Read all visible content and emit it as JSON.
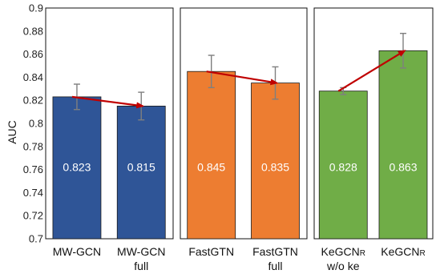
{
  "chart_data": {
    "type": "bar",
    "ylabel": "AUC",
    "ylim": [
      0.7,
      0.9
    ],
    "yticks": [
      "0.7",
      "0.72",
      "0.74",
      "0.76",
      "0.78",
      "0.8",
      "0.82",
      "0.84",
      "0.86",
      "0.88",
      "0.9"
    ],
    "groups": [
      {
        "color": "#2f5597",
        "bars": [
          {
            "label_lines": [
              "MW-GCN"
            ],
            "value": 0.823,
            "value_label": "0.823",
            "err_low": 0.812,
            "err_high": 0.834
          },
          {
            "label_lines": [
              "MW-GCN",
              "full"
            ],
            "value": 0.815,
            "value_label": "0.815",
            "err_low": 0.803,
            "err_high": 0.827
          }
        ]
      },
      {
        "color": "#ed7d31",
        "bars": [
          {
            "label_lines": [
              "FastGTN"
            ],
            "value": 0.845,
            "value_label": "0.845",
            "err_low": 0.831,
            "err_high": 0.859
          },
          {
            "label_lines": [
              "FastGTN",
              "full"
            ],
            "value": 0.835,
            "value_label": "0.835",
            "err_low": 0.821,
            "err_high": 0.849
          }
        ]
      },
      {
        "color": "#70ad47",
        "bars": [
          {
            "label_lines": [
              "KeGCN",
              "w/o ke"
            ],
            "label_sub": "R",
            "value": 0.828,
            "value_label": "0.828",
            "err_low": 0.825,
            "err_high": 0.831
          },
          {
            "label_lines": [
              "KeGCN"
            ],
            "label_sub": "R",
            "value": 0.863,
            "value_label": "0.863",
            "err_low": 0.848,
            "err_high": 0.878
          }
        ]
      }
    ],
    "trend_arrows": [
      {
        "from": [
          0,
          0
        ],
        "to": [
          0,
          1
        ]
      },
      {
        "from": [
          1,
          0
        ],
        "to": [
          1,
          1
        ]
      },
      {
        "from": [
          2,
          0
        ],
        "to": [
          2,
          1
        ]
      }
    ],
    "grid": false,
    "arrow_color": "#c00000",
    "error_bar_color": "#7f7f7f"
  }
}
